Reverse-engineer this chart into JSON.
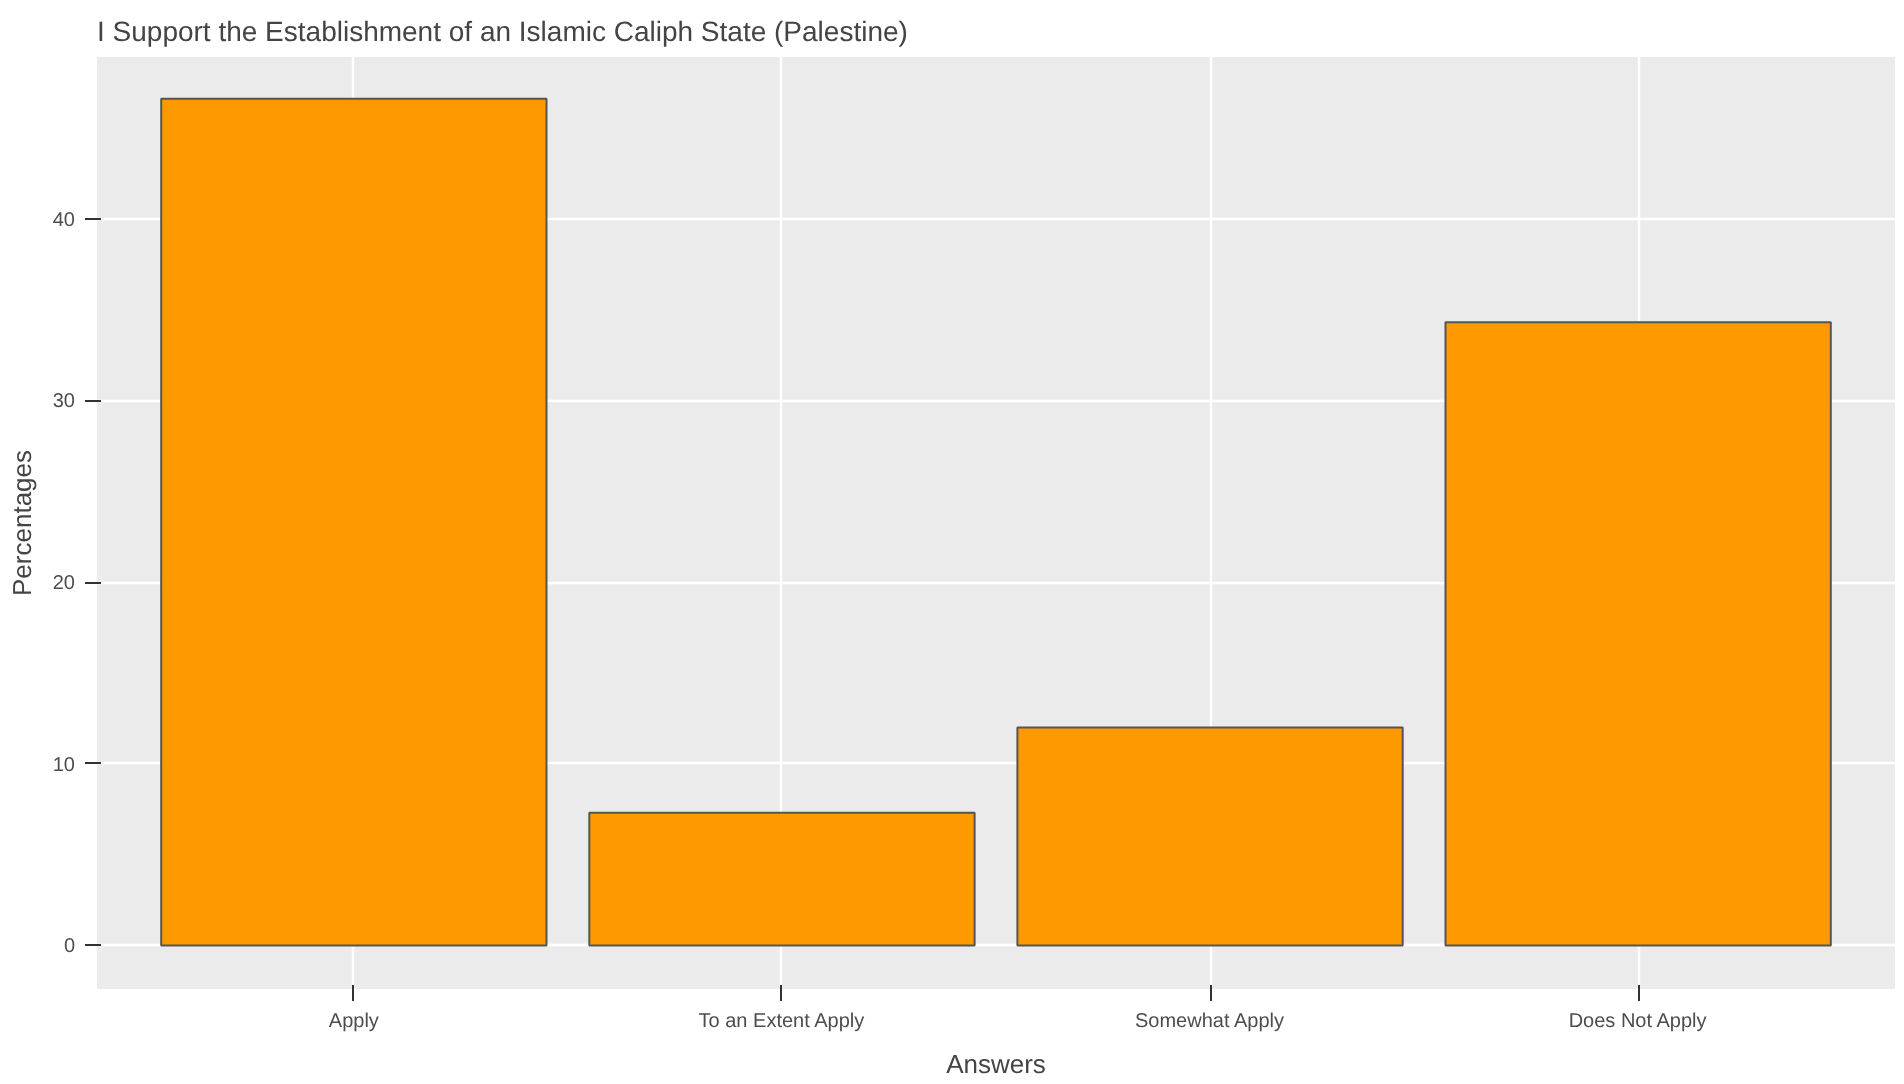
{
  "chart_data": {
    "type": "bar",
    "title": "I Support the Establishment of an Islamic Caliph State (Palestine)",
    "xlabel": "Answers",
    "ylabel": "Percentages",
    "categories": [
      "Apply",
      "To an Extent Apply",
      "Somewhat Apply",
      "Does Not Apply"
    ],
    "values": [
      46.6,
      7.3,
      12.0,
      34.3
    ],
    "color": "#ff9900",
    "ylim": [
      -2.4,
      48.9
    ],
    "yticks": [
      0,
      10,
      20,
      30,
      40
    ],
    "grid": true
  }
}
